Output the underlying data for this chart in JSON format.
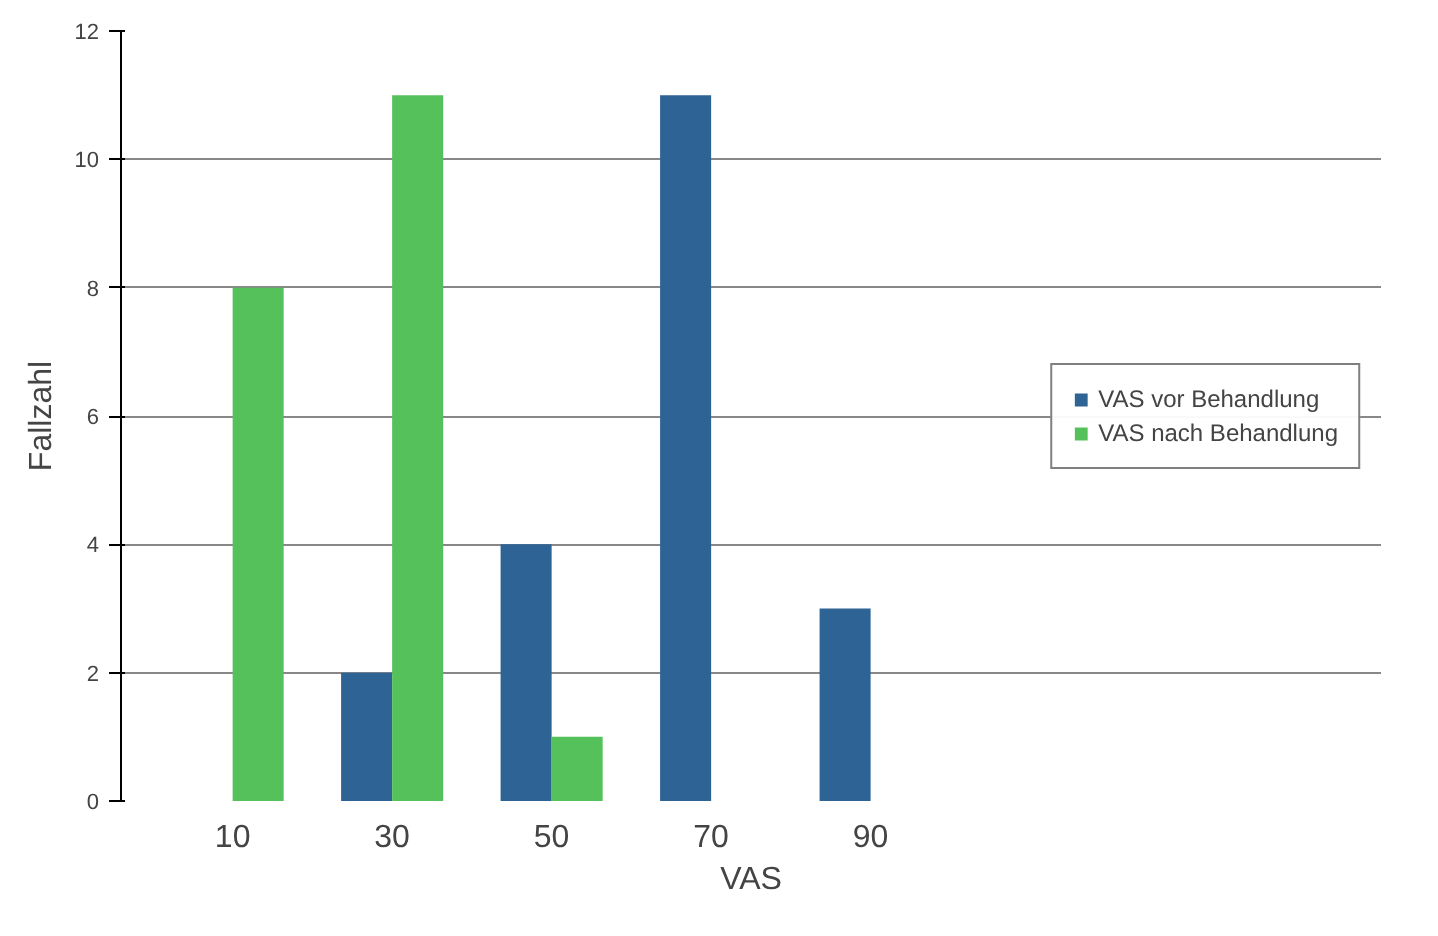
{
  "chart_data": {
    "type": "bar",
    "xlabel": "VAS",
    "ylabel": "Fallzahl",
    "categories": [
      "10",
      "30",
      "50",
      "70",
      "90"
    ],
    "series": [
      {
        "name": "VAS vor Behandlung",
        "color": "#2e6396",
        "values": [
          0,
          2,
          4,
          11,
          3
        ]
      },
      {
        "name": "VAS nach Behandlung",
        "color": "#55c15a",
        "values": [
          8,
          11,
          1,
          0,
          0
        ]
      }
    ],
    "ylim": [
      0,
      12
    ],
    "yticks": [
      0,
      2,
      4,
      6,
      8,
      10,
      12
    ],
    "grid": "y",
    "legend": "right"
  }
}
